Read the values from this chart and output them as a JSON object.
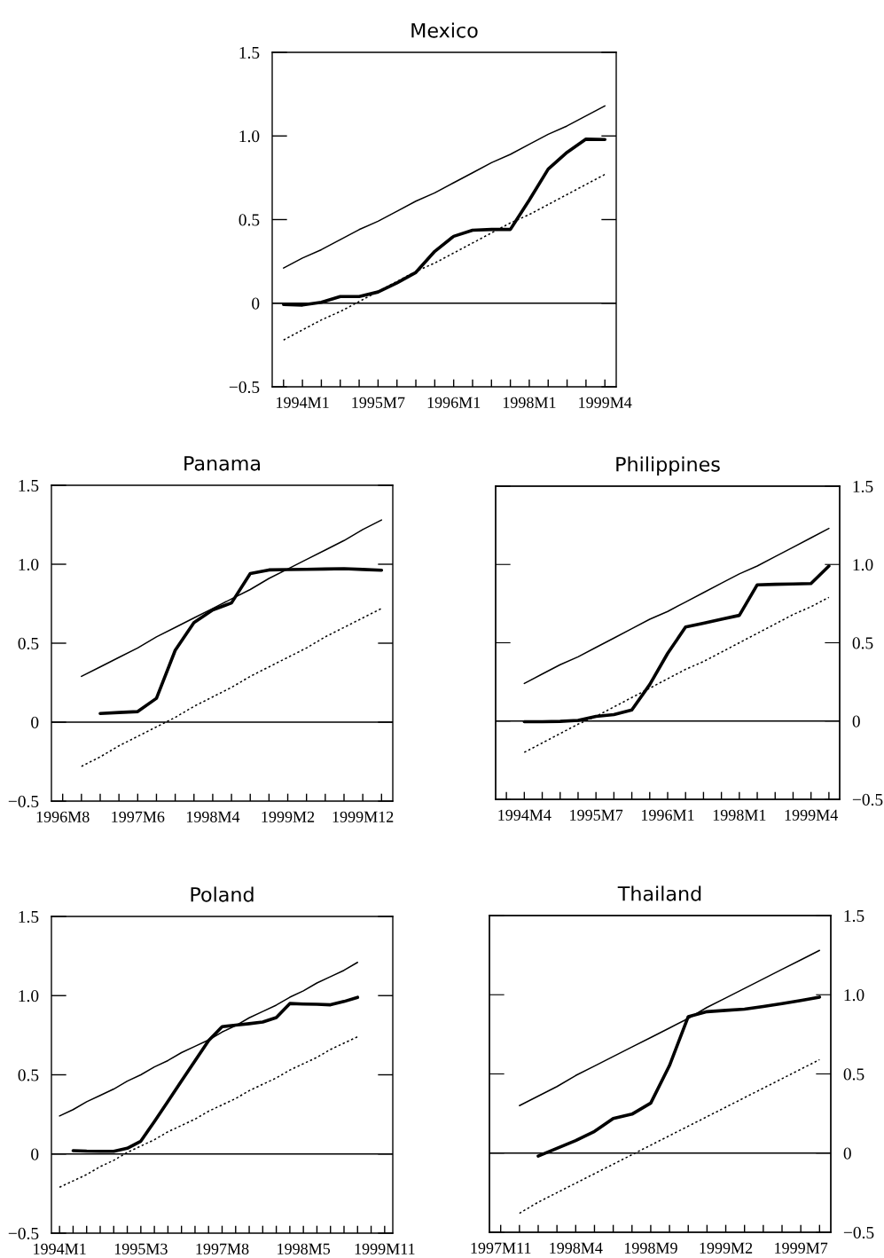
{
  "chart_data": [
    {
      "type": "line",
      "title": "Mexico",
      "ylim": [
        -0.5,
        1.5
      ],
      "categories": [
        null,
        "1994M1",
        null,
        null,
        null,
        "1995M7",
        null,
        null,
        null,
        "1996M1",
        null,
        null,
        null,
        "1998M1",
        null,
        null,
        null,
        "1999M4"
      ],
      "yticks": [
        {
          "value": -0.5,
          "label": "−0.5"
        },
        {
          "value": 0,
          "label": "0"
        },
        {
          "value": 0.5,
          "label": "0.5"
        },
        {
          "value": 1.0,
          "label": "1.0"
        },
        {
          "value": 1.5,
          "label": "1.5"
        }
      ],
      "ref_lines": [
        {
          "axis": "y",
          "value": 0,
          "color": "#000000",
          "line_style": "solid"
        }
      ],
      "series": [
        {
          "color": "#000000",
          "line_style": "solid",
          "values": [
            -0.008,
            -0.011,
            0.005,
            0.04,
            0.04,
            0.067,
            0.121,
            0.184,
            0.31,
            0.4,
            0.436,
            0.441,
            0.441,
            0.617,
            0.802,
            0.902,
            0.981,
            0.979
          ]
        },
        {
          "color": "#000000",
          "line_style": "solid",
          "values": [
            0.21,
            0.27,
            0.32,
            0.38,
            0.44,
            0.49,
            0.55,
            0.61,
            0.66,
            0.72,
            0.78,
            0.84,
            0.89,
            0.95,
            1.01,
            1.06,
            1.12,
            1.18
          ]
        },
        {
          "color": "#000000",
          "line_style": "dotted",
          "values": [
            -0.22,
            -0.16,
            -0.1,
            -0.05,
            0.01,
            0.07,
            0.13,
            0.19,
            0.24,
            0.3,
            0.36,
            0.42,
            0.48,
            0.53,
            0.59,
            0.65,
            0.71,
            0.77
          ]
        }
      ]
    },
    {
      "type": "line",
      "title": "Panama",
      "ylim": [
        -0.5,
        1.5
      ],
      "categories": [
        "1996M8",
        null,
        null,
        null,
        "1997M6",
        null,
        null,
        null,
        "1998M4",
        null,
        null,
        null,
        "1999M2",
        null,
        null,
        null,
        "1999M12",
        null
      ],
      "yticks": [
        {
          "value": -0.5,
          "label": "−0.5"
        },
        {
          "value": 0,
          "label": "0"
        },
        {
          "value": 0.5,
          "label": "0.5"
        },
        {
          "value": 1.0,
          "label": "1.0"
        },
        {
          "value": 1.5,
          "label": "1.5"
        }
      ],
      "ref_lines": [
        {
          "axis": "y",
          "value": 0,
          "color": "#000000",
          "line_style": "solid"
        }
      ],
      "series": [
        {
          "color": "#000000",
          "line_style": "solid",
          "values": [
            null,
            null,
            0.055,
            0.061,
            0.067,
            0.151,
            0.455,
            0.631,
            0.711,
            0.755,
            0.941,
            0.964,
            0.966,
            0.968,
            0.97,
            0.972,
            0.967,
            0.962
          ]
        },
        {
          "color": "#000000",
          "line_style": "solid",
          "values": [
            null,
            0.29,
            0.35,
            0.41,
            0.47,
            0.54,
            0.6,
            0.66,
            0.72,
            0.78,
            0.84,
            0.91,
            0.97,
            1.03,
            1.09,
            1.15,
            1.22,
            1.28
          ]
        },
        {
          "color": "#000000",
          "line_style": "dotted",
          "values": [
            null,
            -0.28,
            -0.22,
            -0.15,
            -0.09,
            -0.03,
            0.03,
            0.1,
            0.16,
            0.22,
            0.29,
            0.35,
            0.41,
            0.47,
            0.54,
            0.6,
            0.66,
            0.72
          ]
        }
      ]
    },
    {
      "type": "line",
      "title": "Philippines",
      "y2lim": [
        -0.5,
        1.5
      ],
      "categories": [
        null,
        "1994M4",
        null,
        null,
        null,
        "1995M7",
        null,
        null,
        null,
        "1996M1",
        null,
        null,
        null,
        "1998M1",
        null,
        null,
        null,
        "1999M4",
        null
      ],
      "y2ticks": [
        {
          "value": -0.5,
          "label": "−0.5"
        },
        {
          "value": 0,
          "label": "0"
        },
        {
          "value": 0.5,
          "label": "0.5"
        },
        {
          "value": 1.0,
          "label": "1.0"
        },
        {
          "value": 1.5,
          "label": "1.5"
        }
      ],
      "ref_lines": [
        {
          "axis": "y2",
          "value": 0,
          "color": "#000000",
          "line_style": "solid"
        }
      ],
      "series": [
        {
          "axis": "y2",
          "color": "#000000",
          "line_style": "solid",
          "values": [
            null,
            -0.004,
            -0.004,
            -0.002,
            0.004,
            0.03,
            0.041,
            0.071,
            0.233,
            0.432,
            0.6,
            0.625,
            0.65,
            0.675,
            0.87,
            0.873,
            0.875,
            0.878,
            0.99
          ]
        },
        {
          "axis": "y2",
          "color": "#000000",
          "line_style": "solid",
          "values": [
            null,
            0.24,
            0.3,
            0.36,
            0.41,
            0.47,
            0.53,
            0.59,
            0.65,
            0.7,
            0.76,
            0.82,
            0.88,
            0.94,
            0.99,
            1.05,
            1.11,
            1.17,
            1.23
          ]
        },
        {
          "axis": "y2",
          "color": "#000000",
          "line_style": "dotted",
          "values": [
            null,
            -0.2,
            -0.14,
            -0.08,
            -0.02,
            0.03,
            0.09,
            0.15,
            0.21,
            0.27,
            0.33,
            0.38,
            0.44,
            0.5,
            0.56,
            0.62,
            0.68,
            0.73,
            0.79
          ]
        }
      ]
    },
    {
      "type": "line",
      "title": "Poland",
      "ylim": [
        -0.5,
        1.5
      ],
      "categories": [
        "1994M1",
        null,
        null,
        null,
        null,
        null,
        "1995M3",
        null,
        null,
        null,
        null,
        null,
        "1997M8",
        null,
        null,
        null,
        null,
        null,
        "1998M5",
        null,
        null,
        null,
        null,
        null,
        "1999M11"
      ],
      "yticks": [
        {
          "value": -0.5,
          "label": "−0.5"
        },
        {
          "value": 0,
          "label": "0"
        },
        {
          "value": 0.5,
          "label": "0.5"
        },
        {
          "value": 1.0,
          "label": "1.0"
        },
        {
          "value": 1.5,
          "label": "1.5"
        }
      ],
      "ref_lines": [
        {
          "axis": "y",
          "value": 0,
          "color": "#000000",
          "line_style": "solid"
        }
      ],
      "series": [
        {
          "color": "#000000",
          "line_style": "solid",
          "values": [
            null,
            0.021,
            0.018,
            0.017,
            0.017,
            0.036,
            0.081,
            0.205,
            0.332,
            0.461,
            0.588,
            0.716,
            0.804,
            0.814,
            0.823,
            0.833,
            0.861,
            0.95,
            0.947,
            0.945,
            0.942,
            0.963,
            0.989,
            null,
            null
          ]
        },
        {
          "color": "#000000",
          "line_style": "solid",
          "values": [
            0.24,
            0.28,
            0.33,
            0.37,
            0.41,
            0.46,
            0.5,
            0.55,
            0.59,
            0.64,
            0.68,
            0.72,
            0.77,
            0.81,
            0.86,
            0.9,
            0.94,
            0.99,
            1.03,
            1.08,
            1.12,
            1.16,
            1.21,
            null,
            null
          ]
        },
        {
          "color": "#000000",
          "line_style": "dotted",
          "values": [
            -0.21,
            -0.17,
            -0.13,
            -0.08,
            -0.04,
            0.01,
            0.05,
            0.09,
            0.14,
            0.18,
            0.22,
            0.27,
            0.31,
            0.35,
            0.4,
            0.44,
            0.48,
            0.53,
            0.57,
            0.61,
            0.66,
            0.7,
            0.74,
            null,
            null
          ]
        }
      ]
    },
    {
      "type": "line",
      "title": "Thailand",
      "y2lim": [
        -0.5,
        1.5
      ],
      "categories": [
        "1997M11",
        null,
        null,
        null,
        "1998M4",
        null,
        null,
        null,
        "1998M9",
        null,
        null,
        null,
        "1999M2",
        null,
        null,
        null,
        "1999M7",
        null
      ],
      "y2ticks": [
        {
          "value": -0.5,
          "label": "−0.5"
        },
        {
          "value": 0,
          "label": "0"
        },
        {
          "value": 0.5,
          "label": "0.5"
        },
        {
          "value": 1.0,
          "label": "1.0"
        },
        {
          "value": 1.5,
          "label": "1.5"
        }
      ],
      "ref_lines": [
        {
          "axis": "y2",
          "value": 0,
          "color": "#000000",
          "line_style": "solid"
        }
      ],
      "series": [
        {
          "axis": "y2",
          "color": "#000000",
          "line_style": "solid",
          "values": [
            null,
            null,
            -0.019,
            0.03,
            0.079,
            0.137,
            0.218,
            0.246,
            0.316,
            0.553,
            0.862,
            0.893,
            0.901,
            0.909,
            0.926,
            0.944,
            0.964,
            0.985
          ]
        },
        {
          "axis": "y2",
          "color": "#000000",
          "line_style": "solid",
          "values": [
            null,
            0.3,
            0.36,
            0.42,
            0.49,
            0.55,
            0.61,
            0.67,
            0.73,
            0.79,
            0.85,
            0.92,
            0.98,
            1.04,
            1.1,
            1.16,
            1.22,
            1.28
          ]
        },
        {
          "axis": "y2",
          "color": "#000000",
          "line_style": "dotted",
          "values": [
            null,
            -0.38,
            -0.31,
            -0.25,
            -0.19,
            -0.13,
            -0.07,
            -0.01,
            0.05,
            0.11,
            0.17,
            0.23,
            0.29,
            0.35,
            0.41,
            0.47,
            0.53,
            0.59
          ]
        }
      ]
    }
  ]
}
